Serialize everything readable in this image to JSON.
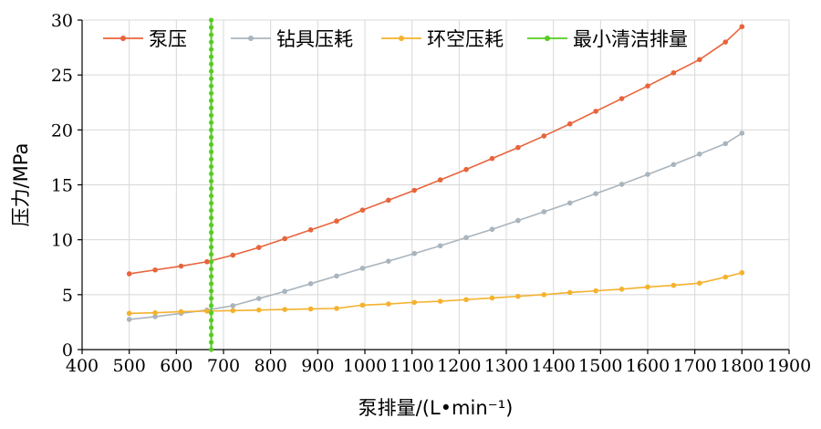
{
  "chart_data": {
    "type": "line",
    "xlabel": "泵排量/(L•min⁻¹)",
    "ylabel": "压力/MPa",
    "xlim": [
      400,
      1900
    ],
    "ylim": [
      0,
      30
    ],
    "xticks": [
      400,
      500,
      600,
      700,
      800,
      900,
      1000,
      1100,
      1200,
      1300,
      1400,
      1500,
      1600,
      1700,
      1800,
      1900
    ],
    "yticks": [
      0,
      5,
      10,
      15,
      20,
      25,
      30
    ],
    "grid": true,
    "legend_position": "top",
    "x": [
      500,
      555,
      610,
      665,
      720,
      775,
      830,
      885,
      940,
      995,
      1050,
      1105,
      1160,
      1215,
      1270,
      1325,
      1380,
      1435,
      1490,
      1545,
      1600,
      1655,
      1710,
      1765,
      1800
    ],
    "series": [
      {
        "name": "泵压",
        "color": "#e8643c",
        "values": [
          6.9,
          7.25,
          7.6,
          8.0,
          8.6,
          9.3,
          10.1,
          10.9,
          11.7,
          12.7,
          13.6,
          14.5,
          15.45,
          16.4,
          17.4,
          18.4,
          19.45,
          20.55,
          21.7,
          22.85,
          24.0,
          25.2,
          26.4,
          28.0,
          29.4
        ]
      },
      {
        "name": "钻具压耗",
        "color": "#a9b4bd",
        "values": [
          2.75,
          3.0,
          3.3,
          3.6,
          4.0,
          4.65,
          5.3,
          6.0,
          6.7,
          7.4,
          8.05,
          8.75,
          9.45,
          10.2,
          10.95,
          11.75,
          12.55,
          13.35,
          14.2,
          15.05,
          15.95,
          16.85,
          17.8,
          18.75,
          19.7
        ]
      },
      {
        "name": "环空压耗",
        "color": "#f4b22e",
        "values": [
          3.3,
          3.35,
          3.45,
          3.5,
          3.55,
          3.6,
          3.65,
          3.7,
          3.75,
          4.05,
          4.15,
          4.3,
          4.4,
          4.55,
          4.7,
          4.85,
          5.0,
          5.2,
          5.35,
          5.5,
          5.7,
          5.85,
          6.05,
          6.6,
          7.0
        ]
      },
      {
        "name": "最小清洁排量",
        "color": "#55cc22",
        "vertical_x": 674,
        "range": [
          0,
          30
        ]
      }
    ]
  }
}
